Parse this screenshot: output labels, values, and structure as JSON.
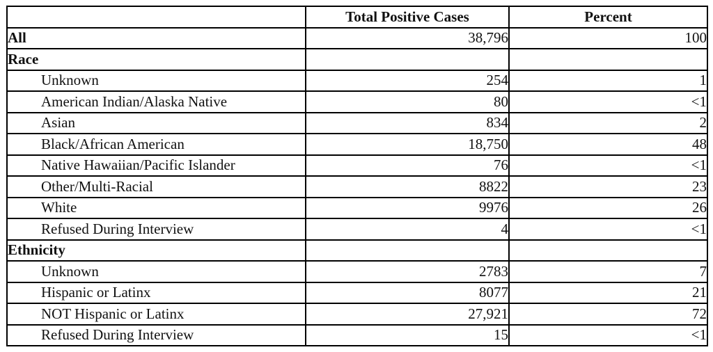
{
  "colors": {
    "border": "#000000",
    "background": "#ffffff",
    "text": "#111111"
  },
  "table": {
    "columns": [
      "",
      "Total Positive Cases",
      "Percent"
    ],
    "rows": [
      {
        "label": "All",
        "bold": true,
        "indent": false,
        "cases": "38,796",
        "percent": "100"
      },
      {
        "label": "Race",
        "bold": true,
        "indent": false,
        "cases": "",
        "percent": ""
      },
      {
        "label": "Unknown",
        "bold": false,
        "indent": true,
        "cases": "254",
        "percent": "1"
      },
      {
        "label": "American Indian/Alaska Native",
        "bold": false,
        "indent": true,
        "cases": "80",
        "percent": "<1"
      },
      {
        "label": "Asian",
        "bold": false,
        "indent": true,
        "cases": "834",
        "percent": "2"
      },
      {
        "label": "Black/African American",
        "bold": false,
        "indent": true,
        "cases": "18,750",
        "percent": "48"
      },
      {
        "label": "Native Hawaiian/Pacific Islander",
        "bold": false,
        "indent": true,
        "cases": "76",
        "percent": "<1"
      },
      {
        "label": "Other/Multi-Racial",
        "bold": false,
        "indent": true,
        "cases": "8822",
        "percent": "23"
      },
      {
        "label": "White",
        "bold": false,
        "indent": true,
        "cases": "9976",
        "percent": "26"
      },
      {
        "label": "Refused During Interview",
        "bold": false,
        "indent": true,
        "cases": "4",
        "percent": "<1"
      },
      {
        "label": "Ethnicity",
        "bold": true,
        "indent": false,
        "cases": "",
        "percent": ""
      },
      {
        "label": "Unknown",
        "bold": false,
        "indent": true,
        "cases": "2783",
        "percent": "7"
      },
      {
        "label": "Hispanic or Latinx",
        "bold": false,
        "indent": true,
        "cases": "8077",
        "percent": "21"
      },
      {
        "label": "NOT Hispanic or Latinx",
        "bold": false,
        "indent": true,
        "cases": "27,921",
        "percent": "72"
      },
      {
        "label": "Refused During Interview",
        "bold": false,
        "indent": true,
        "cases": "15",
        "percent": "<1"
      }
    ]
  },
  "chart_data": {
    "type": "table",
    "title": "",
    "columns": [
      "Category",
      "Total Positive Cases",
      "Percent"
    ],
    "sections": [
      {
        "name": "All",
        "rows": [
          {
            "category": "All",
            "total_positive_cases": 38796,
            "percent": "100"
          }
        ]
      },
      {
        "name": "Race",
        "rows": [
          {
            "category": "Unknown",
            "total_positive_cases": 254,
            "percent": "1"
          },
          {
            "category": "American Indian/Alaska Native",
            "total_positive_cases": 80,
            "percent": "<1"
          },
          {
            "category": "Asian",
            "total_positive_cases": 834,
            "percent": "2"
          },
          {
            "category": "Black/African American",
            "total_positive_cases": 18750,
            "percent": "48"
          },
          {
            "category": "Native Hawaiian/Pacific Islander",
            "total_positive_cases": 76,
            "percent": "<1"
          },
          {
            "category": "Other/Multi-Racial",
            "total_positive_cases": 8822,
            "percent": "23"
          },
          {
            "category": "White",
            "total_positive_cases": 9976,
            "percent": "26"
          },
          {
            "category": "Refused During Interview",
            "total_positive_cases": 4,
            "percent": "<1"
          }
        ]
      },
      {
        "name": "Ethnicity",
        "rows": [
          {
            "category": "Unknown",
            "total_positive_cases": 2783,
            "percent": "7"
          },
          {
            "category": "Hispanic or Latinx",
            "total_positive_cases": 8077,
            "percent": "21"
          },
          {
            "category": "NOT Hispanic or Latinx",
            "total_positive_cases": 27921,
            "percent": "72"
          },
          {
            "category": "Refused During Interview",
            "total_positive_cases": 15,
            "percent": "<1"
          }
        ]
      }
    ]
  }
}
